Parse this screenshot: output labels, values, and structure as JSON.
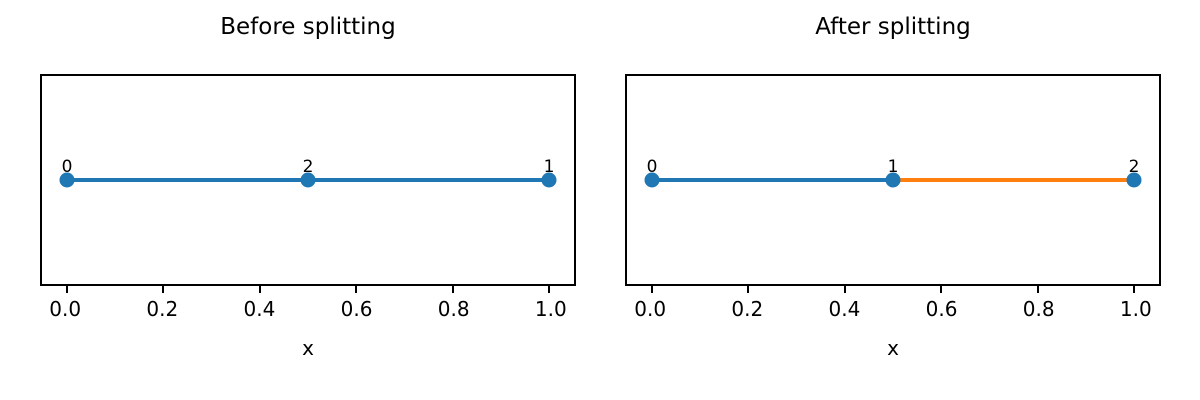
{
  "figure": {
    "background": "#ffffff"
  },
  "colors": {
    "blue": "#1f77b4",
    "orange": "#ff7f0e",
    "axis": "#000000"
  },
  "chart_data": [
    {
      "type": "line",
      "title": "Before splitting",
      "xlabel": "x",
      "xlim": [
        0.0,
        1.0
      ],
      "xtick_labels": [
        "0.0",
        "0.2",
        "0.4",
        "0.6",
        "0.8",
        "1.0"
      ],
      "grid": false,
      "marker_color": "#1f77b4",
      "segments": [
        {
          "x_start": 0.0,
          "x_end": 1.0,
          "color": "#1f77b4"
        }
      ],
      "points": [
        {
          "x": 0.0,
          "y": 0,
          "label": "0"
        },
        {
          "x": 0.5,
          "y": 0,
          "label": "2"
        },
        {
          "x": 1.0,
          "y": 0,
          "label": "1"
        }
      ]
    },
    {
      "type": "line",
      "title": "After splitting",
      "xlabel": "x",
      "xlim": [
        0.0,
        1.0
      ],
      "xtick_labels": [
        "0.0",
        "0.2",
        "0.4",
        "0.6",
        "0.8",
        "1.0"
      ],
      "grid": false,
      "marker_color": "#1f77b4",
      "segments": [
        {
          "x_start": 0.0,
          "x_end": 0.5,
          "color": "#1f77b4"
        },
        {
          "x_start": 0.5,
          "x_end": 1.0,
          "color": "#ff7f0e"
        }
      ],
      "points": [
        {
          "x": 0.0,
          "y": 0,
          "label": "0"
        },
        {
          "x": 0.5,
          "y": 0,
          "label": "1"
        },
        {
          "x": 1.0,
          "y": 0,
          "label": "2"
        }
      ]
    }
  ]
}
